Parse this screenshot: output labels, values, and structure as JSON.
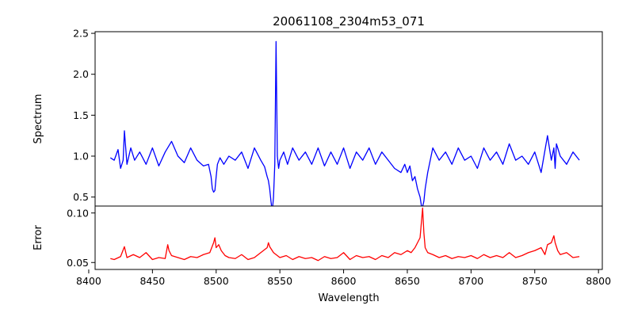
{
  "chart_data": {
    "type": "line",
    "title": "20061108_2304m53_071",
    "xlabel": "Wavelength",
    "xlim": [
      8405,
      8803
    ],
    "x_ticks": [
      8400,
      8450,
      8500,
      8550,
      8600,
      8650,
      8700,
      8750,
      8800
    ],
    "x_tick_labels": [
      "8400",
      "8450",
      "8500",
      "8550",
      "8600",
      "8650",
      "8700",
      "8750",
      "8800"
    ],
    "grid": false,
    "panels": [
      {
        "name": "spectrum",
        "ylabel": "Spectrum",
        "ylim": [
          0.39,
          2.52
        ],
        "y_ticks": [
          0.5,
          1.0,
          1.5,
          2.0,
          2.5
        ],
        "y_tick_labels": [
          "0.5",
          "1.0",
          "1.5",
          "2.0",
          "2.5"
        ],
        "color": "#0000ff",
        "series": {
          "x": [
            8417,
            8420,
            8423,
            8425,
            8427,
            8428,
            8430,
            8433,
            8436,
            8440,
            8445,
            8450,
            8455,
            8460,
            8465,
            8470,
            8475,
            8480,
            8485,
            8490,
            8494,
            8496,
            8497,
            8498,
            8499,
            8500,
            8501,
            8503,
            8506,
            8510,
            8515,
            8520,
            8525,
            8530,
            8535,
            8538,
            8540,
            8541,
            8542,
            8543,
            8544,
            8545,
            8546,
            8547,
            8548,
            8549,
            8550,
            8553,
            8556,
            8560,
            8565,
            8570,
            8575,
            8580,
            8585,
            8590,
            8595,
            8600,
            8605,
            8610,
            8615,
            8620,
            8625,
            8630,
            8635,
            8640,
            8645,
            8648,
            8650,
            8652,
            8654,
            8656,
            8658,
            8660,
            8661,
            8662,
            8663,
            8664,
            8666,
            8668,
            8670,
            8675,
            8680,
            8685,
            8690,
            8695,
            8700,
            8705,
            8710,
            8715,
            8720,
            8725,
            8730,
            8735,
            8740,
            8745,
            8750,
            8755,
            8760,
            8763,
            8765,
            8766,
            8767,
            8770,
            8775,
            8780,
            8785
          ],
          "y": [
            0.98,
            0.95,
            1.08,
            0.85,
            0.95,
            1.31,
            0.9,
            1.1,
            0.95,
            1.05,
            0.9,
            1.1,
            0.88,
            1.05,
            1.18,
            1.0,
            0.92,
            1.1,
            0.95,
            0.88,
            0.9,
            0.75,
            0.6,
            0.56,
            0.58,
            0.75,
            0.9,
            0.98,
            0.9,
            1.0,
            0.95,
            1.05,
            0.85,
            1.1,
            0.95,
            0.87,
            0.75,
            0.7,
            0.6,
            0.45,
            0.32,
            0.5,
            0.9,
            2.4,
            1.0,
            0.85,
            0.95,
            1.05,
            0.9,
            1.1,
            0.95,
            1.05,
            0.9,
            1.1,
            0.88,
            1.05,
            0.9,
            1.1,
            0.85,
            1.05,
            0.95,
            1.1,
            0.9,
            1.05,
            0.95,
            0.85,
            0.8,
            0.9,
            0.8,
            0.88,
            0.7,
            0.75,
            0.6,
            0.5,
            0.4,
            0.38,
            0.45,
            0.6,
            0.8,
            0.95,
            1.1,
            0.95,
            1.05,
            0.9,
            1.1,
            0.95,
            1.0,
            0.85,
            1.1,
            0.95,
            1.05,
            0.9,
            1.15,
            0.95,
            1.0,
            0.9,
            1.05,
            0.8,
            1.25,
            0.95,
            1.1,
            0.85,
            1.15,
            1.0,
            0.9,
            1.05,
            0.95
          ]
        }
      },
      {
        "name": "error",
        "ylabel": "Error",
        "ylim": [
          0.043,
          0.107
        ],
        "y_ticks": [
          0.05,
          0.1
        ],
        "y_tick_labels": [
          "0.05",
          "0.10"
        ],
        "color": "#ff0000",
        "series": {
          "x": [
            8417,
            8420,
            8425,
            8428,
            8430,
            8435,
            8440,
            8445,
            8450,
            8455,
            8460,
            8462,
            8463,
            8465,
            8470,
            8475,
            8480,
            8485,
            8490,
            8495,
            8498,
            8499,
            8500,
            8502,
            8504,
            8507,
            8510,
            8515,
            8520,
            8525,
            8530,
            8535,
            8540,
            8541,
            8542,
            8545,
            8547,
            8550,
            8555,
            8560,
            8565,
            8570,
            8575,
            8580,
            8585,
            8590,
            8595,
            8600,
            8605,
            8610,
            8615,
            8620,
            8625,
            8630,
            8635,
            8640,
            8645,
            8650,
            8653,
            8656,
            8658,
            8660,
            8661,
            8662,
            8663,
            8664,
            8666,
            8670,
            8675,
            8680,
            8685,
            8690,
            8695,
            8700,
            8705,
            8710,
            8715,
            8720,
            8725,
            8730,
            8735,
            8740,
            8745,
            8750,
            8755,
            8758,
            8760,
            8763,
            8765,
            8766,
            8768,
            8770,
            8775,
            8780,
            8785
          ],
          "y": [
            0.054,
            0.053,
            0.056,
            0.066,
            0.055,
            0.058,
            0.055,
            0.06,
            0.053,
            0.055,
            0.054,
            0.068,
            0.062,
            0.057,
            0.055,
            0.053,
            0.056,
            0.055,
            0.058,
            0.06,
            0.07,
            0.075,
            0.065,
            0.068,
            0.062,
            0.057,
            0.055,
            0.054,
            0.058,
            0.053,
            0.055,
            0.06,
            0.065,
            0.07,
            0.066,
            0.06,
            0.058,
            0.055,
            0.057,
            0.053,
            0.056,
            0.054,
            0.055,
            0.052,
            0.056,
            0.054,
            0.055,
            0.06,
            0.053,
            0.057,
            0.055,
            0.056,
            0.053,
            0.057,
            0.055,
            0.06,
            0.058,
            0.062,
            0.06,
            0.065,
            0.07,
            0.075,
            0.09,
            0.105,
            0.08,
            0.065,
            0.06,
            0.058,
            0.055,
            0.057,
            0.054,
            0.056,
            0.055,
            0.057,
            0.054,
            0.058,
            0.055,
            0.057,
            0.055,
            0.06,
            0.055,
            0.057,
            0.06,
            0.062,
            0.065,
            0.058,
            0.068,
            0.07,
            0.077,
            0.07,
            0.062,
            0.058,
            0.06,
            0.055,
            0.056
          ]
        }
      }
    ]
  }
}
